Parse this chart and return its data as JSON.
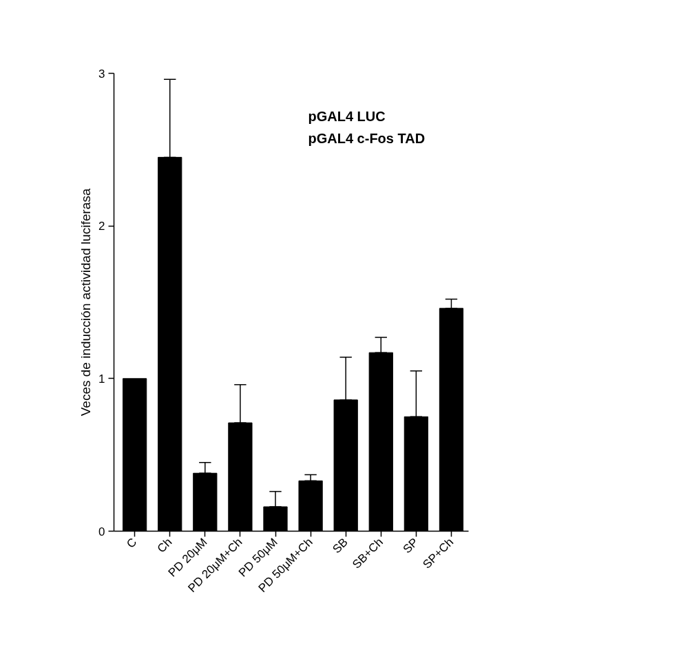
{
  "chart_data": {
    "type": "bar",
    "ylabel": "Veces de inducción actividad luciferasa",
    "annotations": [
      "pGAL4 LUC",
      "pGAL4 c-Fos TAD"
    ],
    "categories": [
      "C",
      "Ch",
      "PD 20μM",
      "PD 20μM+Ch",
      "PD 50μM",
      "PD 50μM+Ch",
      "SB",
      "SB+Ch",
      "SP",
      "SP+Ch"
    ],
    "values": [
      1.0,
      2.45,
      0.38,
      0.71,
      0.16,
      0.33,
      0.86,
      1.17,
      0.75,
      1.46
    ],
    "errors": [
      null,
      [
        2.45,
        2.96
      ],
      [
        0.38,
        0.45
      ],
      [
        0.71,
        0.96
      ],
      [
        0.16,
        0.26
      ],
      [
        0.33,
        0.37
      ],
      [
        0.86,
        1.14
      ],
      [
        1.17,
        1.27
      ],
      [
        0.75,
        1.05
      ],
      [
        1.46,
        1.52
      ]
    ],
    "color": "#000000",
    "ylim": [
      0,
      3
    ],
    "yticks": [
      0,
      1,
      2,
      3
    ],
    "grid": false
  }
}
